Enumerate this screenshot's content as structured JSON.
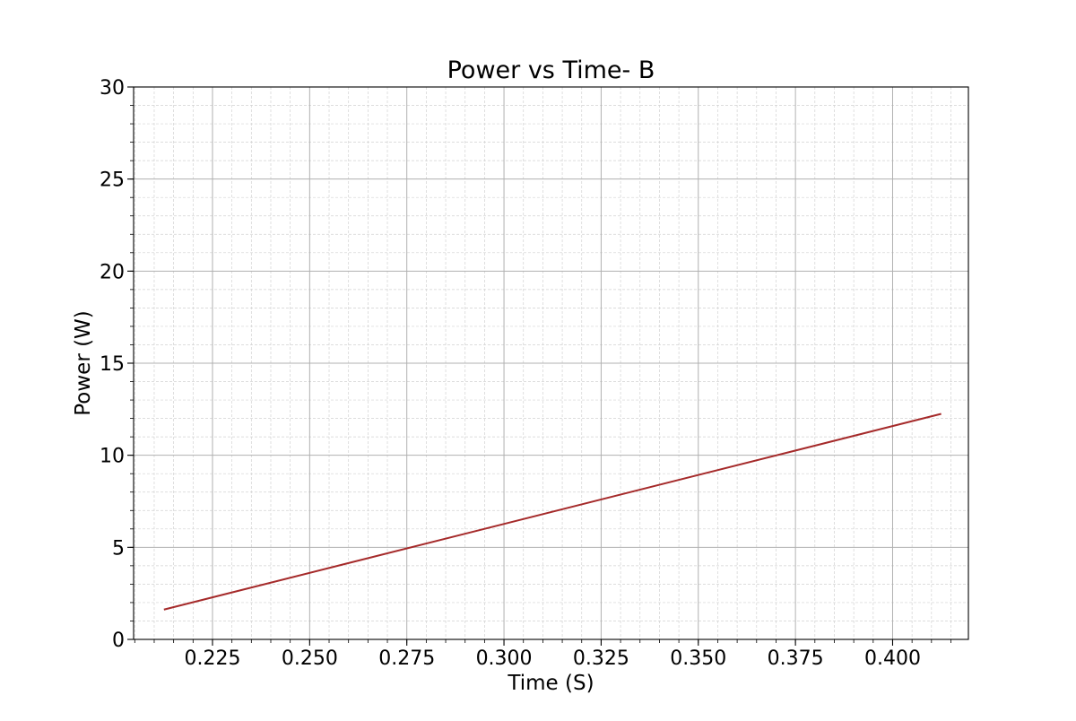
{
  "chart_data": {
    "type": "line",
    "title": "Power vs Time- B",
    "xlabel": "Time (S)",
    "ylabel": "Power (W)",
    "xlim": [
      0.2047,
      0.4195
    ],
    "ylim": [
      0,
      30
    ],
    "x_ticks": [
      "0.225",
      "0.250",
      "0.275",
      "0.300",
      "0.325",
      "0.350",
      "0.375",
      "0.400"
    ],
    "y_ticks": [
      "0",
      "5",
      "10",
      "15",
      "20",
      "25",
      "30"
    ],
    "grid": true,
    "minor_grid": true,
    "legend": "none",
    "series": [
      {
        "color": "#a52a2a",
        "x": [
          0.2125,
          0.4125
        ],
        "y": [
          1.62,
          12.25
        ]
      }
    ]
  }
}
